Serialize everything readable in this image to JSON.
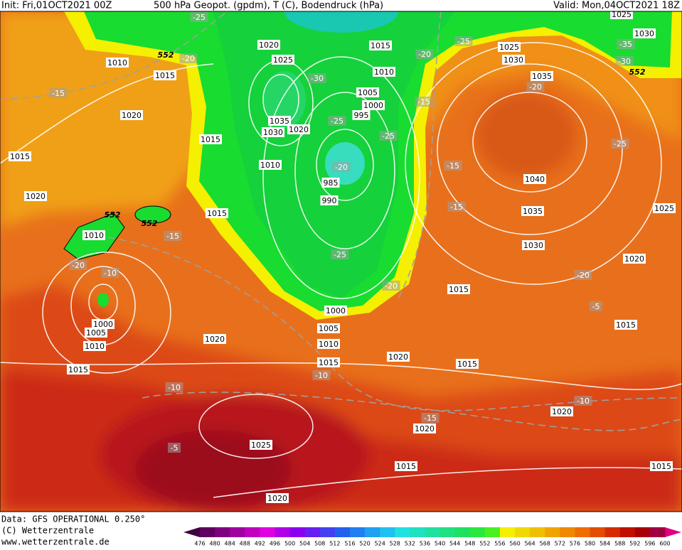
{
  "header": {
    "init": "Init: Fri,01OCT2021 00Z",
    "field": "500 hPa Geopot. (gpdm), T (C), Bodendruck (hPa)",
    "valid": "Valid: Mon,04OCT2021 18Z"
  },
  "map": {
    "pressure_labels": [
      "1010",
      "1015",
      "1020",
      "1015",
      "1020",
      "1010",
      "1000",
      "1005",
      "1010",
      "1015",
      "1020",
      "1025",
      "1020",
      "1015",
      "1015",
      "1010",
      "1020",
      "1025",
      "1035",
      "1030",
      "1020",
      "985",
      "990",
      "995",
      "1000",
      "1005",
      "1010",
      "1015",
      "1000",
      "1005",
      "1010",
      "1015",
      "1020",
      "1015",
      "1015",
      "1020",
      "1015",
      "1020",
      "1025",
      "1030",
      "1035",
      "1040",
      "1035",
      "1030",
      "1025",
      "1020",
      "1015",
      "1015",
      "1030",
      "1025"
    ],
    "temperature_labels": [
      "-25",
      "-20",
      "-15",
      "-30",
      "-25",
      "-25",
      "-20",
      "-25",
      "-20",
      "-15",
      "-15",
      "-15",
      "-20",
      "-25",
      "-35",
      "-30",
      "-15",
      "-20",
      "-10",
      "-25",
      "-20",
      "-10",
      "-10",
      "-5",
      "-15",
      "-10",
      "-20",
      "-5"
    ],
    "geopotential_labels": [
      "552",
      "552",
      "552",
      "552"
    ]
  },
  "footer": {
    "data": "Data: GFS OPERATIONAL 0.250°",
    "copyright": "(C) Wetterzentrale",
    "url": "www.wetterzentrale.de"
  },
  "legend": {
    "labels": [
      476,
      480,
      484,
      488,
      492,
      496,
      500,
      504,
      508,
      512,
      516,
      520,
      524,
      528,
      532,
      536,
      540,
      544,
      548,
      552,
      556,
      560,
      564,
      568,
      572,
      576,
      580,
      584,
      588,
      592,
      596,
      600
    ]
  }
}
